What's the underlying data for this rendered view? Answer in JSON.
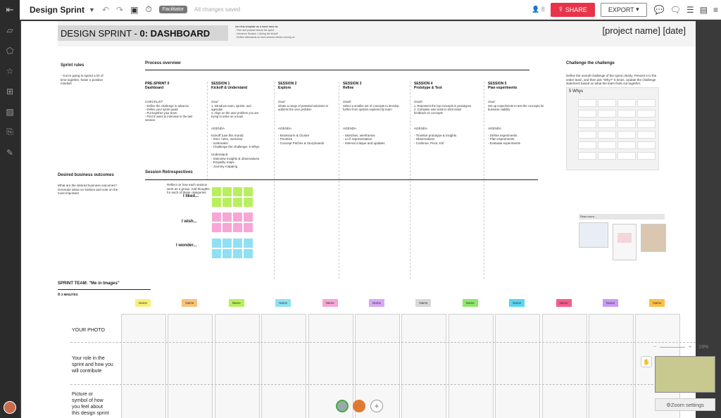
{
  "app": {
    "title": "Design Sprint",
    "facilitator": "Facilitator",
    "saved": "All changes saved",
    "user_count": "8",
    "share": "SHARE",
    "export": "EXPORT"
  },
  "board": {
    "title_prefix": "DESIGN SPRINT - ",
    "title_bold": "0: DASHBOARD",
    "note_title": "Use this template as a home base to:",
    "note_lines": [
      "- Plan and prepare before the sprint",
      "- Introduce Session 1 during the kickoff",
      "- Reflect afterwards on each session before moving on"
    ],
    "project": "[project name] [date]"
  },
  "left": {
    "sprint_rules": "Sprint rules",
    "sprint_rules_body": "- You're going to spend a lot of time together, foster a positive mindset",
    "outcomes": "Desired business outcomes",
    "outcomes_body": "What are the desired business outcomes? Generate ideas on stickies and vote on the most important."
  },
  "process": {
    "title": "Process overview",
    "sessions": [
      {
        "name": "PRE-SPRINT 0",
        "sub": "Dashboard",
        "goal": "CHECKLIST",
        "body": "- Define the challenge in advance\n- Define your sprint goals\n- Put together your team\n- Find 5 users to interview in the last session"
      },
      {
        "name": "SESSION 1",
        "sub": "Kickoff & Understand",
        "goal": "Goal",
        "body": "1. Introduce team, sprints, and agendas\n2. Align on the user problem you are trying to solve as a team",
        "agenda": "AGENDA",
        "agenda_body": "Kickoff (use this mural)\n- Intro: rules, overview\n- Icebreaker\n- Challenge the challenge: 5 Whys\n\nUnderstand\n- Interview insights & observations\n- Empathy maps\n- Journey mapping"
      },
      {
        "name": "SESSION 2",
        "sub": "Explore",
        "goal": "Goal",
        "body": "Ideate a range of potential solutions to address the user problem",
        "agenda": "AGENDA",
        "agenda_body": "- Brainstorm & Cluster\n- Prioritize\n- Concept Pitches & Storyboards"
      },
      {
        "name": "SESSION 3",
        "sub": "Refine",
        "goal": "Goals",
        "body": "Select a smaller set of concepts to develop further from options explored by team",
        "agenda": "AGENDA",
        "agenda_body": "- Sketches, wireframes\n- Lo-fi representation\n- Internal critique and updates"
      },
      {
        "name": "SESSION 4",
        "sub": "Prototype & Test",
        "goal": "Goals",
        "body": "1. Represent the top concepts in prototypes\n2. Complete user tests to elicit initial feedback on concepts",
        "agenda": "AGENDA",
        "agenda_body": "- Timeline prototype & insights\n- Observations\n- Continue, Pivot, Kill"
      },
      {
        "name": "SESSION 5",
        "sub": "Plan experiments",
        "goal": "Goal",
        "body": "Set up experiments to test the concepts for business viability",
        "agenda": "AGENDA",
        "agenda_body": "- Define experiments\n- Plan experiments\n- Evaluate experiments"
      }
    ]
  },
  "retro": {
    "title": "Session Retrospectives",
    "body": "Reflect on how each session went as a group. Add thoughts for each of these categories:",
    "liked": "I liked...",
    "wish": "I wish...",
    "wonder": "I wonder...",
    "colors": {
      "liked": "#b9ef5e",
      "wish": "#f7a6d6",
      "wonder": "#8fe0f4"
    }
  },
  "challenge": {
    "title": "Challenge the challenge",
    "body": "Define the overall challenge of the sprint clearly. Present it to the entire team, and then ask \"Why?\" 5 times. Update the challenge statement based on what the team finds out together.",
    "whys_title": "5 Whys",
    "read_more": "Read more..."
  },
  "team": {
    "title": "SPRINT TEAM: \"Me in Images\"",
    "timer": "3 MINUTES",
    "names": [
      {
        "label": "Name",
        "color": "#f6f07a"
      },
      {
        "label": "Name",
        "color": "#f9c27a"
      },
      {
        "label": "Name",
        "color": "#b9ef5e"
      },
      {
        "label": "Name",
        "color": "#8fe0f4"
      },
      {
        "label": "Name",
        "color": "#f7a6d6"
      },
      {
        "label": "Name",
        "color": "#d6a8f5"
      },
      {
        "label": "Name",
        "color": "#d8d8d8"
      },
      {
        "label": "Name",
        "color": "#8ce86a"
      },
      {
        "label": "Name",
        "color": "#58d6f2"
      },
      {
        "label": "Name",
        "color": "#f55c8a"
      },
      {
        "label": "Name",
        "color": "#c79bf5"
      },
      {
        "label": "Name",
        "color": "#f9c04a"
      }
    ],
    "row_photo": "YOUR PHOTO",
    "row_role": "Your role in the sprint and how you will contribute",
    "row_picture": "Picture or symbol of how you feel about this design sprint"
  },
  "zoom": {
    "percent": "19%",
    "settings": "Zoom settings"
  }
}
